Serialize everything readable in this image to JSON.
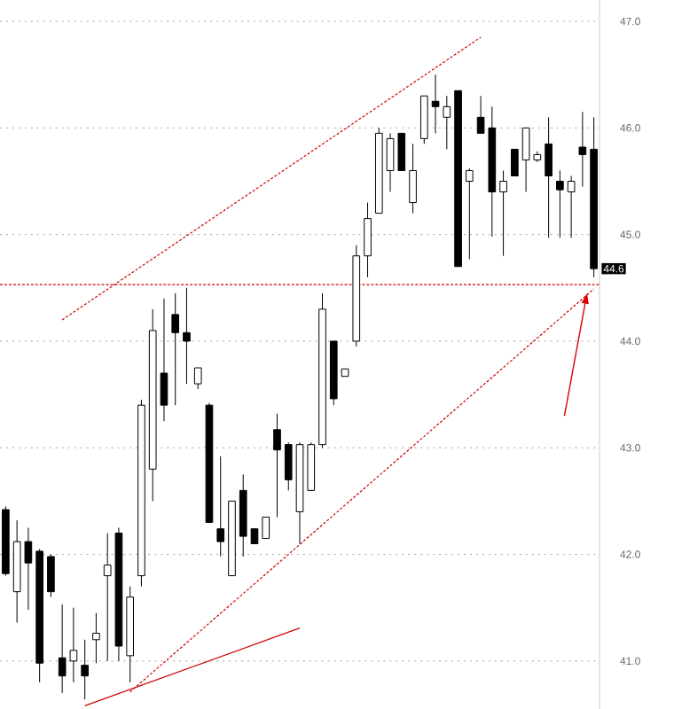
{
  "chart_data": {
    "type": "candlestick",
    "categories": [
      null,
      null,
      null,
      null,
      null,
      null,
      null,
      null,
      null,
      null,
      null,
      null,
      null,
      null,
      null,
      null,
      null,
      null,
      null,
      null,
      null,
      null,
      null,
      null,
      null,
      null,
      null,
      null,
      null,
      null,
      null,
      null,
      null,
      null,
      null,
      null,
      null,
      null,
      null,
      null,
      null,
      null,
      null,
      null,
      null,
      null,
      null,
      null,
      null,
      null,
      null,
      null,
      null
    ],
    "ohlc": [
      [
        42.42,
        42.45,
        41.8,
        41.82
      ],
      [
        41.65,
        42.32,
        41.36,
        42.12
      ],
      [
        42.12,
        42.25,
        41.48,
        41.92
      ],
      [
        42.03,
        42.05,
        40.8,
        40.98
      ],
      [
        41.98,
        42.0,
        41.6,
        41.65
      ],
      [
        41.03,
        41.53,
        40.7,
        40.86
      ],
      [
        41.0,
        41.5,
        40.8,
        41.1
      ],
      [
        40.96,
        41.2,
        40.64,
        40.86
      ],
      [
        41.2,
        41.45,
        40.98,
        41.26
      ],
      [
        41.8,
        42.2,
        41.0,
        41.9
      ],
      [
        42.2,
        42.25,
        41.0,
        41.14
      ],
      [
        41.05,
        41.7,
        40.8,
        41.6
      ],
      [
        41.8,
        43.45,
        41.7,
        43.4
      ],
      [
        42.8,
        44.3,
        42.5,
        44.1
      ],
      [
        43.7,
        44.4,
        43.25,
        43.4
      ],
      [
        44.25,
        44.45,
        43.4,
        44.08
      ],
      [
        44.08,
        44.5,
        43.6,
        44.0
      ],
      [
        43.6,
        43.75,
        43.55,
        43.75
      ],
      [
        43.4,
        43.42,
        42.3,
        42.3
      ],
      [
        42.24,
        42.92,
        41.98,
        42.12
      ],
      [
        41.8,
        42.5,
        41.8,
        42.5
      ],
      [
        42.6,
        42.75,
        41.98,
        42.17
      ],
      [
        42.24,
        42.24,
        42.1,
        42.1
      ],
      [
        42.15,
        42.35,
        42.15,
        42.35
      ],
      [
        43.17,
        43.32,
        42.35,
        42.98
      ],
      [
        43.03,
        43.05,
        42.6,
        42.7
      ],
      [
        42.4,
        43.05,
        42.1,
        43.03
      ],
      [
        42.6,
        43.05,
        42.6,
        43.03
      ],
      [
        43.03,
        44.45,
        43.0,
        44.3
      ],
      [
        44.0,
        44.0,
        43.4,
        43.46
      ],
      [
        43.67,
        43.74,
        43.67,
        43.74
      ],
      [
        44.0,
        44.9,
        43.95,
        44.8
      ],
      [
        44.8,
        45.3,
        44.6,
        45.15
      ],
      [
        45.2,
        46.0,
        45.2,
        45.95
      ],
      [
        45.6,
        45.95,
        45.4,
        45.9
      ],
      [
        45.95,
        45.95,
        45.6,
        45.6
      ],
      [
        45.3,
        45.85,
        45.2,
        45.6
      ],
      [
        45.9,
        46.3,
        45.85,
        46.3
      ],
      [
        46.25,
        46.5,
        45.95,
        46.2
      ],
      [
        46.1,
        46.3,
        45.8,
        46.2
      ],
      [
        46.35,
        46.35,
        44.7,
        44.7
      ],
      [
        45.5,
        45.62,
        44.77,
        45.6
      ],
      [
        46.1,
        46.3,
        45.95,
        45.95
      ],
      [
        46.0,
        46.2,
        44.98,
        45.4
      ],
      [
        45.4,
        45.6,
        44.8,
        45.5
      ],
      [
        45.8,
        45.8,
        45.55,
        45.55
      ],
      [
        45.7,
        46.0,
        45.4,
        46.0
      ],
      [
        45.7,
        45.78,
        45.68,
        45.75
      ],
      [
        45.85,
        46.1,
        44.97,
        45.55
      ],
      [
        45.5,
        45.6,
        44.97,
        45.42
      ],
      [
        45.4,
        45.55,
        44.97,
        45.5
      ],
      [
        45.82,
        46.15,
        45.45,
        45.75
      ],
      [
        45.8,
        46.1,
        44.6,
        44.68
      ]
    ],
    "series": [
      {
        "type": "line",
        "values": [
          null,
          null,
          null,
          null,
          null,
          44.2,
          null,
          null,
          null,
          null,
          null,
          null,
          null,
          null,
          null,
          null,
          null,
          null,
          null,
          null,
          null,
          null,
          null,
          null,
          null,
          null,
          null,
          null,
          null,
          null,
          null,
          null,
          null,
          null,
          null,
          null,
          null,
          null,
          null,
          null,
          null,
          null,
          46.85,
          null,
          null,
          null,
          null,
          null,
          null,
          null,
          null,
          null,
          null
        ],
        "color": "#cc0000",
        "line_style": "dashed"
      },
      {
        "type": "line",
        "values": [
          null,
          null,
          null,
          null,
          null,
          null,
          null,
          null,
          null,
          null,
          null,
          40.71,
          null,
          null,
          null,
          null,
          null,
          null,
          null,
          null,
          null,
          null,
          null,
          null,
          null,
          null,
          null,
          null,
          null,
          null,
          null,
          null,
          null,
          null,
          null,
          null,
          null,
          null,
          null,
          null,
          null,
          null,
          null,
          null,
          null,
          null,
          null,
          null,
          null,
          null,
          null,
          null,
          44.49
        ],
        "color": "#cc0000",
        "line_style": "dashed"
      },
      {
        "type": "line",
        "values": [
          null,
          null,
          null,
          null,
          null,
          null,
          null,
          40.58,
          null,
          null,
          null,
          null,
          null,
          null,
          null,
          null,
          null,
          null,
          null,
          null,
          null,
          null,
          null,
          null,
          null,
          null,
          41.31,
          null,
          null,
          null,
          null,
          null,
          null,
          null,
          null,
          null,
          null,
          null,
          null,
          null,
          null,
          null,
          null,
          null,
          null,
          null,
          null,
          null,
          null,
          null,
          null,
          null,
          null
        ],
        "color": "#cc0000",
        "line_style": "solid"
      }
    ],
    "ref_lines": [
      {
        "axis": "y",
        "value": 44.53,
        "color": "#cc0000",
        "line_style": "dashed"
      }
    ],
    "annotations": [
      "44.6"
    ],
    "ylim": [
      40.55,
      47.2
    ],
    "yticks": [
      {
        "value": 41,
        "label": "41.0"
      },
      {
        "value": 42,
        "label": "42.0"
      },
      {
        "value": 43,
        "label": "43.0"
      },
      {
        "value": 44,
        "label": "44.0"
      },
      {
        "value": 45,
        "label": "45.0"
      },
      {
        "value": 46,
        "label": "46.0"
      },
      {
        "value": 47,
        "label": "47.0"
      }
    ],
    "grid": "y",
    "tick_labels": "y"
  }
}
